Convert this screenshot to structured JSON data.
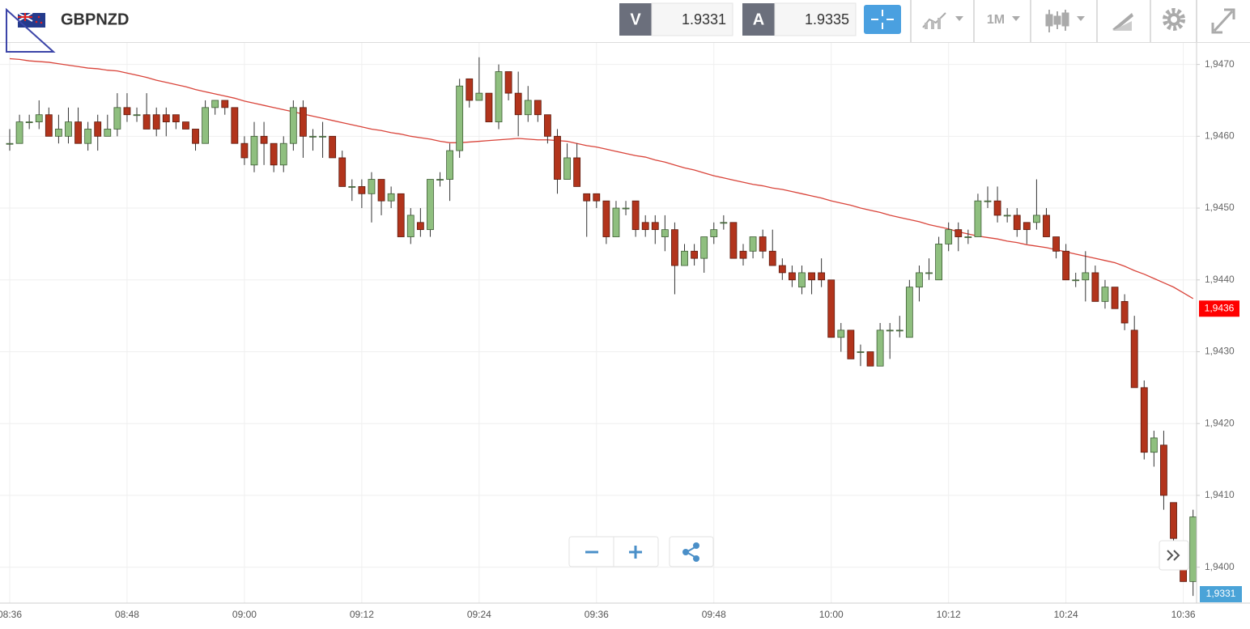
{
  "header": {
    "symbol": "GBPNZD",
    "sell_label": "V",
    "sell_price": "1.9331",
    "buy_label": "A",
    "buy_price": "1.9335",
    "timeframe": "1M"
  },
  "chart_data": {
    "type": "candlestick",
    "categories": [
      "08:36",
      null,
      null,
      null,
      null,
      null,
      null,
      null,
      null,
      null,
      null,
      null,
      "08:48",
      null,
      null,
      null,
      null,
      null,
      null,
      null,
      null,
      null,
      null,
      null,
      "09:00",
      null,
      null,
      null,
      null,
      null,
      null,
      null,
      null,
      null,
      null,
      null,
      "09:12",
      null,
      null,
      null,
      null,
      null,
      null,
      null,
      null,
      null,
      null,
      null,
      "09:24",
      null,
      null,
      null,
      null,
      null,
      null,
      null,
      null,
      null,
      null,
      null,
      "09:36",
      null,
      null,
      null,
      null,
      null,
      null,
      null,
      null,
      null,
      null,
      null,
      "09:48",
      null,
      null,
      null,
      null,
      null,
      null,
      null,
      null,
      null,
      null,
      null,
      "10:00",
      null,
      null,
      null,
      null,
      null,
      null,
      null,
      null,
      null,
      null,
      null,
      "10:12",
      null,
      null,
      null,
      null,
      null,
      null,
      null,
      null,
      null,
      null,
      null,
      "10:24",
      null,
      null,
      null,
      null,
      null,
      null,
      null,
      null,
      null,
      null,
      null,
      "10:36",
      null
    ],
    "open": [
      1.9459,
      1.9459,
      1.9462,
      1.9462,
      1.9463,
      1.946,
      1.946,
      1.9462,
      1.9459,
      1.9462,
      1.946,
      1.9461,
      1.9464,
      1.9463,
      1.9463,
      1.9463,
      1.9463,
      1.9463,
      1.9462,
      1.9461,
      1.9459,
      1.9464,
      1.9465,
      1.9464,
      1.9459,
      1.9456,
      1.946,
      1.9459,
      1.9456,
      1.9459,
      1.9464,
      1.946,
      1.946,
      1.946,
      1.9457,
      1.9453,
      1.9453,
      1.9452,
      1.9454,
      1.9451,
      1.9452,
      1.9446,
      1.9448,
      1.9447,
      1.9454,
      1.9454,
      1.9458,
      1.9468,
      1.9465,
      1.9466,
      1.9462,
      1.9469,
      1.9466,
      1.9463,
      1.9465,
      1.9463,
      1.946,
      1.9454,
      1.9457,
      1.9452,
      1.9452,
      1.9451,
      1.9446,
      1.945,
      1.9451,
      1.9448,
      1.9448,
      1.9446,
      1.9447,
      1.9442,
      1.9444,
      1.9443,
      1.9446,
      1.9448,
      1.9448,
      1.9444,
      1.9444,
      1.9446,
      1.9444,
      1.9442,
      1.9441,
      1.9439,
      1.9441,
      1.9441,
      1.944,
      1.9432,
      1.9433,
      1.943,
      1.943,
      1.9428,
      1.9433,
      1.9433,
      1.9432,
      1.9439,
      1.9441,
      1.944,
      1.9445,
      1.9447,
      1.9446,
      1.9446,
      1.9451,
      1.9451,
      1.9449,
      1.9449,
      1.9448,
      1.9448,
      1.9449,
      1.9446,
      1.9444,
      1.944,
      1.944,
      1.9441,
      1.9437,
      1.9439,
      1.9437,
      1.9433,
      1.9425,
      1.9416,
      1.9417,
      1.9409,
      1.94,
      1.9398
    ],
    "high": [
      1.9461,
      1.9463,
      1.9463,
      1.9465,
      1.9464,
      1.9463,
      1.9464,
      1.9464,
      1.9462,
      1.9463,
      1.9463,
      1.9466,
      1.9466,
      1.9464,
      1.9466,
      1.9464,
      1.9464,
      1.9463,
      1.9462,
      1.9461,
      1.9465,
      1.9465,
      1.9465,
      1.9464,
      1.946,
      1.9462,
      1.9462,
      1.9459,
      1.946,
      1.9465,
      1.9465,
      1.9461,
      1.9462,
      1.946,
      1.9458,
      1.9454,
      1.9454,
      1.9455,
      1.9454,
      1.9453,
      1.9452,
      1.945,
      1.945,
      1.9454,
      1.9455,
      1.9459,
      1.9468,
      1.9468,
      1.9471,
      1.9466,
      1.947,
      1.9469,
      1.9469,
      1.9467,
      1.9465,
      1.9463,
      1.9461,
      1.9459,
      1.9459,
      1.9452,
      1.9452,
      1.9451,
      1.9451,
      1.9451,
      1.9451,
      1.9449,
      1.9449,
      1.9449,
      1.9448,
      1.9445,
      1.9445,
      1.9446,
      1.9448,
      1.9449,
      1.9448,
      1.9445,
      1.9446,
      1.9447,
      1.9447,
      1.9443,
      1.9442,
      1.9442,
      1.9441,
      1.9443,
      1.944,
      1.9434,
      1.9433,
      1.9431,
      1.943,
      1.9434,
      1.9434,
      1.9435,
      1.944,
      1.9442,
      1.9443,
      1.9446,
      1.9448,
      1.9448,
      1.9447,
      1.9452,
      1.9453,
      1.9453,
      1.945,
      1.945,
      1.9448,
      1.9454,
      1.945,
      1.9446,
      1.9445,
      1.9441,
      1.9444,
      1.9442,
      1.944,
      1.9439,
      1.9438,
      1.9435,
      1.9426,
      1.9419,
      1.9419,
      1.9409,
      1.9402,
      1.9408
    ],
    "low": [
      1.9458,
      1.9459,
      1.9461,
      1.9461,
      1.946,
      1.9459,
      1.9459,
      1.9459,
      1.9458,
      1.9458,
      1.946,
      1.946,
      1.9462,
      1.9462,
      1.9461,
      1.946,
      1.946,
      1.9461,
      1.9461,
      1.9458,
      1.9459,
      1.9463,
      1.9463,
      1.9459,
      1.9456,
      1.9455,
      1.9456,
      1.9455,
      1.9455,
      1.9458,
      1.9457,
      1.9458,
      1.9457,
      1.9457,
      1.9453,
      1.9451,
      1.945,
      1.9448,
      1.9449,
      1.945,
      1.9446,
      1.9445,
      1.9446,
      1.9446,
      1.9453,
      1.9451,
      1.9457,
      1.9464,
      1.9465,
      1.9462,
      1.9461,
      1.9465,
      1.946,
      1.9462,
      1.9462,
      1.9459,
      1.9452,
      1.9454,
      1.9453,
      1.9446,
      1.945,
      1.9445,
      1.9446,
      1.9449,
      1.9446,
      1.9446,
      1.9445,
      1.9444,
      1.9438,
      1.9442,
      1.9442,
      1.9441,
      1.9445,
      1.9447,
      1.9443,
      1.9442,
      1.9443,
      1.9443,
      1.9442,
      1.944,
      1.9439,
      1.9438,
      1.9438,
      1.9439,
      1.9432,
      1.943,
      1.9429,
      1.9428,
      1.9428,
      1.9428,
      1.9429,
      1.9432,
      1.9432,
      1.9437,
      1.944,
      1.944,
      1.9444,
      1.9444,
      1.9445,
      1.9446,
      1.945,
      1.9448,
      1.9448,
      1.9446,
      1.9445,
      1.9447,
      1.9446,
      1.9443,
      1.944,
      1.9439,
      1.9437,
      1.9437,
      1.9436,
      1.9436,
      1.9433,
      1.9425,
      1.9415,
      1.9414,
      1.9408,
      1.9403,
      1.9398,
      1.9396
    ],
    "close": [
      1.9459,
      1.9462,
      1.9462,
      1.9463,
      1.946,
      1.9461,
      1.9462,
      1.9459,
      1.9461,
      1.946,
      1.9461,
      1.9464,
      1.9463,
      1.9463,
      1.9461,
      1.9461,
      1.9462,
      1.9462,
      1.9461,
      1.9459,
      1.9464,
      1.9465,
      1.9464,
      1.9459,
      1.9457,
      1.946,
      1.9459,
      1.9456,
      1.9459,
      1.9464,
      1.946,
      1.946,
      1.946,
      1.9457,
      1.9453,
      1.9453,
      1.9452,
      1.9454,
      1.9451,
      1.9452,
      1.9446,
      1.9449,
      1.9447,
      1.9454,
      1.9454,
      1.9458,
      1.9467,
      1.9465,
      1.9466,
      1.9462,
      1.9469,
      1.9466,
      1.9463,
      1.9465,
      1.9463,
      1.946,
      1.9454,
      1.9457,
      1.9453,
      1.9451,
      1.9451,
      1.9446,
      1.945,
      1.945,
      1.9447,
      1.9447,
      1.9447,
      1.9447,
      1.9442,
      1.9444,
      1.9443,
      1.9446,
      1.9447,
      1.9448,
      1.9443,
      1.9443,
      1.9446,
      1.9444,
      1.9442,
      1.9441,
      1.944,
      1.9441,
      1.944,
      1.944,
      1.9432,
      1.9433,
      1.9429,
      1.943,
      1.9428,
      1.9433,
      1.9433,
      1.9433,
      1.9439,
      1.9441,
      1.9441,
      1.9445,
      1.9447,
      1.9446,
      1.9446,
      1.9451,
      1.9451,
      1.9449,
      1.9449,
      1.9447,
      1.9447,
      1.9449,
      1.9446,
      1.9444,
      1.944,
      1.944,
      1.9441,
      1.9437,
      1.9439,
      1.9436,
      1.9434,
      1.9425,
      1.9416,
      1.9418,
      1.941,
      1.9404,
      1.9398,
      1.9407
    ],
    "up_color": "#8fbf7f",
    "down_color": "#b2341c",
    "ma": {
      "color": "#d9443a",
      "values": [
        1.94708,
        1.94707,
        1.94705,
        1.94704,
        1.94703,
        1.94701,
        1.94699,
        1.94697,
        1.94695,
        1.94694,
        1.94692,
        1.94691,
        1.94688,
        1.94685,
        1.94682,
        1.94678,
        1.94675,
        1.94672,
        1.94669,
        1.94665,
        1.94662,
        1.94659,
        1.94656,
        1.94653,
        1.94649,
        1.94646,
        1.94643,
        1.9464,
        1.94637,
        1.94634,
        1.94631,
        1.94628,
        1.94625,
        1.94622,
        1.94619,
        1.94616,
        1.94613,
        1.9461,
        1.94608,
        1.94605,
        1.94603,
        1.946,
        1.94598,
        1.94596,
        1.94593,
        1.94591,
        1.94591,
        1.94592,
        1.94593,
        1.94594,
        1.94595,
        1.94596,
        1.94597,
        1.94596,
        1.94595,
        1.94595,
        1.94594,
        1.94593,
        1.9459,
        1.94587,
        1.94585,
        1.94582,
        1.94579,
        1.94576,
        1.94573,
        1.94571,
        1.94567,
        1.94564,
        1.9456,
        1.94556,
        1.94553,
        1.94549,
        1.94545,
        1.94542,
        1.94539,
        1.94536,
        1.94533,
        1.94531,
        1.94528,
        1.94526,
        1.94523,
        1.9452,
        1.94517,
        1.94514,
        1.9451,
        1.94507,
        1.94504,
        1.945,
        1.94497,
        1.94494,
        1.9449,
        1.94487,
        1.94484,
        1.94481,
        1.94477,
        1.94474,
        1.94471,
        1.94467,
        1.94464,
        1.94461,
        1.94459,
        1.94457,
        1.94454,
        1.94452,
        1.94449,
        1.94447,
        1.94445,
        1.94442,
        1.94439,
        1.94436,
        1.94433,
        1.9443,
        1.94427,
        1.94424,
        1.94419,
        1.94413,
        1.94408,
        1.94402,
        1.94396,
        1.9439,
        1.94382,
        1.94374
      ]
    },
    "ylim": [
      1.9395,
      1.9473
    ],
    "yticks": [
      {
        "value": 1.94,
        "label": "1,9400"
      },
      {
        "value": 1.941,
        "label": "1,9410"
      },
      {
        "value": 1.942,
        "label": "1,9420"
      },
      {
        "value": 1.943,
        "label": "1,9430"
      },
      {
        "value": 1.944,
        "label": "1,9440"
      },
      {
        "value": 1.945,
        "label": "1,9450"
      },
      {
        "value": 1.946,
        "label": "1,9460"
      },
      {
        "value": 1.947,
        "label": "1,9470"
      }
    ],
    "grid": true,
    "price_tag": {
      "value": 1.9436,
      "label": "1,9436",
      "color": "#ff0000"
    },
    "bid_tag": {
      "label": "1,9331",
      "color": "#4aa3d8"
    }
  }
}
